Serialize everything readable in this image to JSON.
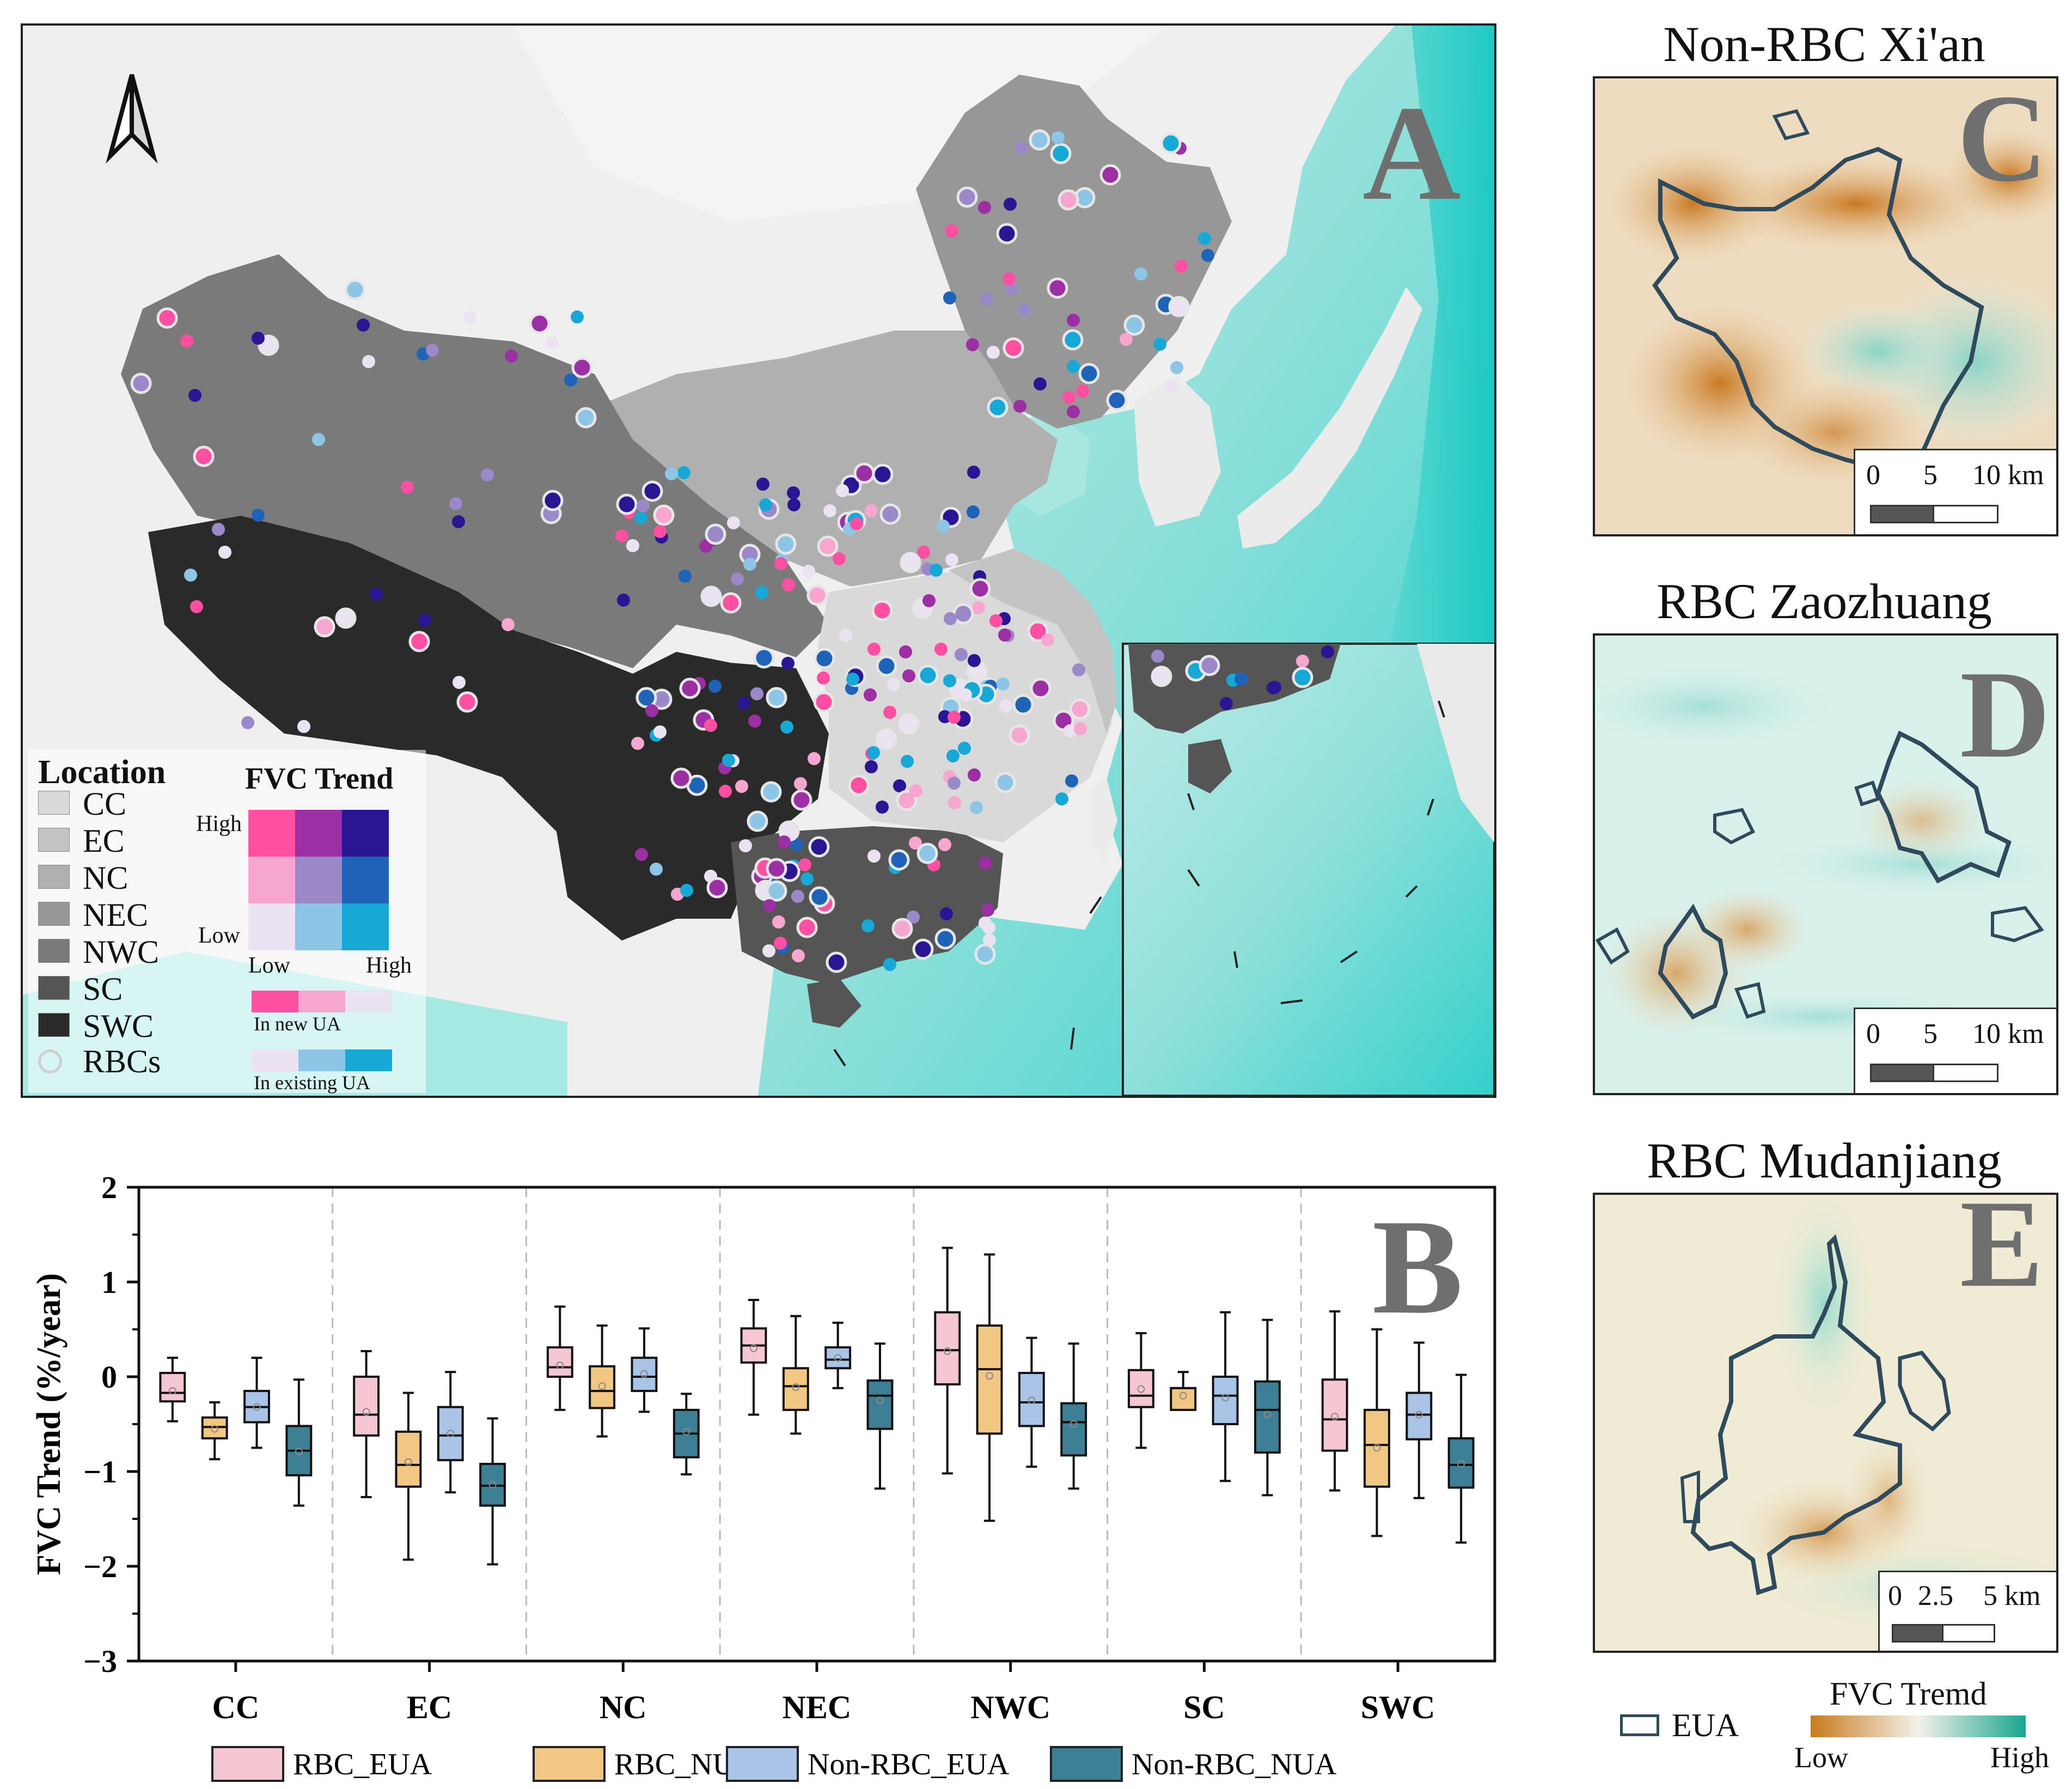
{
  "panels": {
    "a": {
      "letter": "A"
    },
    "b": {
      "letter": "B"
    },
    "c": {
      "letter": "C",
      "title": "Non-RBC  Xi'an",
      "scale": [
        "0",
        "5",
        "10 km"
      ]
    },
    "d": {
      "letter": "D",
      "title": "RBC  Zaozhuang",
      "scale": [
        "0",
        "5",
        "10 km"
      ]
    },
    "e": {
      "letter": "E",
      "title": "RBC  Mudanjiang",
      "scale": [
        "0",
        "2.5",
        "5 km"
      ]
    }
  },
  "map_legend": {
    "location_title": "Location",
    "regions": [
      {
        "label": "CC",
        "color": "#d9d9d9"
      },
      {
        "label": "EC",
        "color": "#c4c4c4"
      },
      {
        "label": "NC",
        "color": "#b0b0b0"
      },
      {
        "label": "NEC",
        "color": "#979797"
      },
      {
        "label": "NWC",
        "color": "#7a7a7a"
      },
      {
        "label": "SC",
        "color": "#555555"
      },
      {
        "label": "SWC",
        "color": "#2a2a2a"
      }
    ],
    "rbc_label": "RBCs",
    "fvc_title": "FVC Trend",
    "axis_high": "High",
    "axis_low": "Low",
    "x_low": "Low",
    "x_high": "High",
    "bivariate": [
      [
        "#ff4fa3",
        "#9b2fa3",
        "#2a1593"
      ],
      [
        "#f7a6cf",
        "#9b88c9",
        "#1f63b8"
      ],
      [
        "#ebe3f2",
        "#8cc5e6",
        "#17a8d8"
      ]
    ],
    "new_ua_label": "In new UA",
    "new_ua_colors": [
      "#ff4fa3",
      "#f7a6cf",
      "#ebe3f2"
    ],
    "existing_ua_label": "In existing UA",
    "existing_ua_colors": [
      "#ebe3f2",
      "#8cc5e6",
      "#17a8d8"
    ]
  },
  "chart_data": {
    "type": "boxplot",
    "ylabel": "FVC Trend (%/year)",
    "ylim": [
      -3,
      2
    ],
    "yticks": [
      -3,
      -2,
      -1,
      0,
      1,
      2
    ],
    "ytick_labels": [
      "−3",
      "−2",
      "−1",
      "0",
      "1",
      "2"
    ],
    "categories": [
      "CC",
      "EC",
      "NC",
      "NEC",
      "NWC",
      "SC",
      "SWC"
    ],
    "series": [
      {
        "name": "RBC_EUA",
        "color": "#f7c6d3",
        "boxes": [
          {
            "whislo": -0.47,
            "q1": -0.26,
            "med": -0.17,
            "q3": 0.04,
            "whishi": 0.2,
            "mean": -0.15
          },
          {
            "whislo": -1.27,
            "q1": -0.62,
            "med": -0.4,
            "q3": 0.0,
            "whishi": 0.27,
            "mean": -0.37
          },
          {
            "whislo": -0.35,
            "q1": 0.0,
            "med": 0.1,
            "q3": 0.31,
            "whishi": 0.74,
            "mean": 0.12
          },
          {
            "whislo": -0.4,
            "q1": 0.15,
            "med": 0.33,
            "q3": 0.51,
            "whishi": 0.81,
            "mean": 0.3
          },
          {
            "whislo": -1.02,
            "q1": -0.08,
            "med": 0.28,
            "q3": 0.68,
            "whishi": 1.36,
            "mean": 0.27
          },
          {
            "whislo": -0.75,
            "q1": -0.32,
            "med": -0.2,
            "q3": 0.07,
            "whishi": 0.46,
            "mean": -0.13
          },
          {
            "whislo": -1.2,
            "q1": -0.78,
            "med": -0.45,
            "q3": -0.03,
            "whishi": 0.69,
            "mean": -0.42
          }
        ]
      },
      {
        "name": "RBC_NUA",
        "color": "#f2c784",
        "boxes": [
          {
            "whislo": -0.87,
            "q1": -0.65,
            "med": -0.53,
            "q3": -0.43,
            "whishi": -0.27,
            "mean": -0.55
          },
          {
            "whislo": -1.93,
            "q1": -1.16,
            "med": -0.93,
            "q3": -0.58,
            "whishi": -0.17,
            "mean": -0.9
          },
          {
            "whislo": -0.63,
            "q1": -0.33,
            "med": -0.15,
            "q3": 0.11,
            "whishi": 0.54,
            "mean": -0.1
          },
          {
            "whislo": -0.6,
            "q1": -0.35,
            "med": -0.1,
            "q3": 0.09,
            "whishi": 0.64,
            "mean": -0.11
          },
          {
            "whislo": -1.52,
            "q1": -0.6,
            "med": 0.08,
            "q3": 0.54,
            "whishi": 1.29,
            "mean": 0.01
          },
          {
            "whislo": -0.35,
            "q1": -0.35,
            "med": -0.12,
            "q3": -0.12,
            "whishi": 0.05,
            "mean": -0.2
          },
          {
            "whislo": -1.68,
            "q1": -1.16,
            "med": -0.72,
            "q3": -0.35,
            "whishi": 0.5,
            "mean": -0.75
          }
        ]
      },
      {
        "name": "Non-RBC_EUA",
        "color": "#a9c4e6",
        "boxes": [
          {
            "whislo": -0.75,
            "q1": -0.48,
            "med": -0.32,
            "q3": -0.15,
            "whishi": 0.2,
            "mean": -0.32
          },
          {
            "whislo": -1.22,
            "q1": -0.88,
            "med": -0.62,
            "q3": -0.32,
            "whishi": 0.05,
            "mean": -0.6
          },
          {
            "whislo": -0.37,
            "q1": -0.15,
            "med": 0.0,
            "q3": 0.2,
            "whishi": 0.51,
            "mean": 0.03
          },
          {
            "whislo": -0.12,
            "q1": 0.09,
            "med": 0.18,
            "q3": 0.31,
            "whishi": 0.57,
            "mean": 0.2
          },
          {
            "whislo": -0.95,
            "q1": -0.52,
            "med": -0.27,
            "q3": 0.04,
            "whishi": 0.41,
            "mean": -0.25
          },
          {
            "whislo": -1.1,
            "q1": -0.5,
            "med": -0.2,
            "q3": 0.0,
            "whishi": 0.68,
            "mean": -0.22
          },
          {
            "whislo": -1.28,
            "q1": -0.66,
            "med": -0.4,
            "q3": -0.17,
            "whishi": 0.36,
            "mean": -0.4
          }
        ]
      },
      {
        "name": "Non-RBC_NUA",
        "color": "#3d7f95",
        "boxes": [
          {
            "whislo": -1.36,
            "q1": -1.04,
            "med": -0.78,
            "q3": -0.52,
            "whishi": -0.03,
            "mean": -0.79
          },
          {
            "whislo": -1.98,
            "q1": -1.36,
            "med": -1.15,
            "q3": -0.92,
            "whishi": -0.44,
            "mean": -1.14
          },
          {
            "whislo": -1.03,
            "q1": -0.85,
            "med": -0.6,
            "q3": -0.35,
            "whishi": -0.18,
            "mean": -0.58
          },
          {
            "whislo": -1.18,
            "q1": -0.55,
            "med": -0.2,
            "q3": -0.04,
            "whishi": 0.35,
            "mean": -0.25
          },
          {
            "whislo": -1.18,
            "q1": -0.83,
            "med": -0.48,
            "q3": -0.28,
            "whishi": 0.35,
            "mean": -0.5
          },
          {
            "whislo": -1.25,
            "q1": -0.8,
            "med": -0.35,
            "q3": -0.05,
            "whishi": 0.6,
            "mean": -0.4
          },
          {
            "whislo": -1.75,
            "q1": -1.17,
            "med": -0.93,
            "q3": -0.65,
            "whishi": 0.02,
            "mean": -0.92
          }
        ]
      }
    ]
  },
  "insets_legend": {
    "eua_label": "EUA",
    "fvc_title": "FVC Tremd",
    "low": "Low",
    "high": "High",
    "gradient": [
      "#c87a1c",
      "#f4f1ea",
      "#1aa690"
    ]
  }
}
